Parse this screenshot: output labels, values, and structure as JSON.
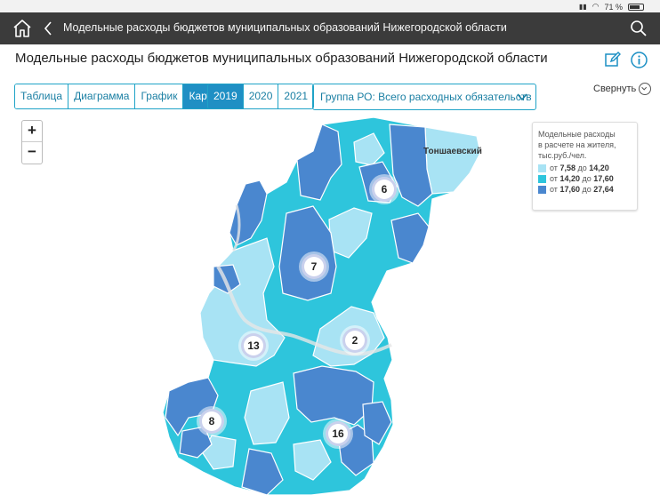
{
  "status": {
    "battery": "71 %"
  },
  "topbar": {
    "title": "Модельные расходы бюджетов муниципальных образований Нижегородской области"
  },
  "page": {
    "title": "Модельные расходы бюджетов муниципальных образований Нижегородской области"
  },
  "view_tabs": [
    {
      "label": "Таблица",
      "active": false
    },
    {
      "label": "Диаграмма",
      "active": false
    },
    {
      "label": "График",
      "active": false
    },
    {
      "label": "Карта",
      "active": true
    }
  ],
  "year_tabs": [
    {
      "label": "2019",
      "active": true
    },
    {
      "label": "2020",
      "active": false
    },
    {
      "label": "2021",
      "active": false
    }
  ],
  "group_select": {
    "value": "Группа РО: Всего расходных обязательств"
  },
  "collapse_label": "Свернуть",
  "zoom": {
    "in": "+",
    "out": "−"
  },
  "legend": {
    "title_lines": [
      "Модельные расходы",
      "в расчете на жителя,",
      "тыс.руб./чел."
    ],
    "ranges": [
      {
        "from_word": "от",
        "from": "7,58",
        "to_word": "до",
        "to": "14,20",
        "color": "#a8e3f4"
      },
      {
        "from_word": "от",
        "from": "14,20",
        "to_word": "до",
        "to": "17,60",
        "color": "#2ec5dc"
      },
      {
        "from_word": "от",
        "from": "17,60",
        "to_word": "до",
        "to": "27,64",
        "color": "#4a87cf"
      }
    ]
  },
  "map": {
    "district_label": "Тоншаевский",
    "clusters": [
      "6",
      "7",
      "13",
      "2",
      "8",
      "16"
    ]
  }
}
